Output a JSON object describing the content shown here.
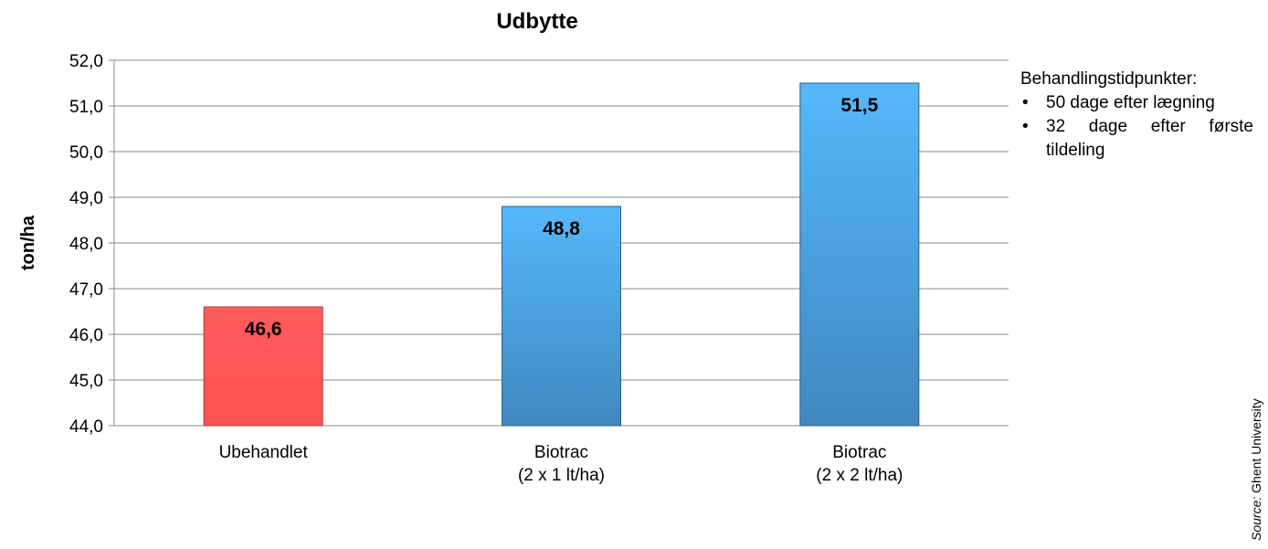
{
  "chart_data": {
    "type": "bar",
    "title": "Udbytte",
    "ylabel": "ton/ha",
    "xlabel": "",
    "ylim": [
      44,
      52
    ],
    "yticks": [
      "44,0",
      "45,0",
      "46,0",
      "47,0",
      "48,0",
      "49,0",
      "50,0",
      "51,0",
      "52,0"
    ],
    "grid": true,
    "categories": [
      [
        "Ubehandlet"
      ],
      [
        "Biotrac",
        "(2 x 1 lt/ha)"
      ],
      [
        "Biotrac",
        "(2 x 2 lt/ha)"
      ]
    ],
    "values": [
      46.6,
      48.8,
      51.5
    ],
    "data_labels": [
      "46,6",
      "48,8",
      "51,5"
    ],
    "colors": [
      "#ff5555",
      "#4fa8e6",
      "#4fa8e6"
    ]
  },
  "note": {
    "heading": "Behandlingstidpunkter:",
    "items": [
      "50 dage efter lægning",
      "32 dage efter første tildeling"
    ]
  },
  "source": {
    "label": "Source:",
    "text": "Ghent University"
  }
}
